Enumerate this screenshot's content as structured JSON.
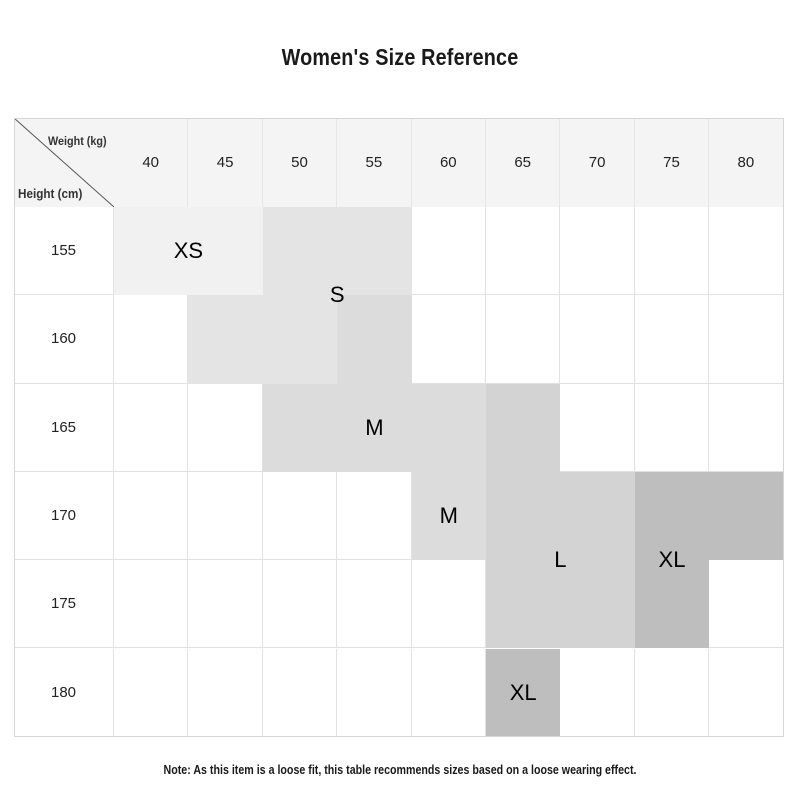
{
  "title": "Women's Size Reference",
  "corner": {
    "weight_label": "Weight (kg)",
    "height_label": "Height (cm)"
  },
  "weights": [
    "40",
    "45",
    "50",
    "55",
    "60",
    "65",
    "70",
    "75",
    "80"
  ],
  "heights": [
    "155",
    "160",
    "165",
    "170",
    "175",
    "180"
  ],
  "size_grid": [
    [
      "XS",
      "XS",
      "S",
      "S",
      "",
      "",
      "",
      "",
      ""
    ],
    [
      "",
      "S",
      "S",
      "M",
      "",
      "",
      "",
      "",
      ""
    ],
    [
      "",
      "",
      "M",
      "M",
      "M",
      "L",
      "",
      "",
      ""
    ],
    [
      "",
      "",
      "",
      "",
      "M",
      "L",
      "L",
      "XL",
      "XL"
    ],
    [
      "",
      "",
      "",
      "",
      "",
      "L",
      "L",
      "XL",
      ""
    ],
    [
      "",
      "",
      "",
      "",
      "",
      "XL",
      "",
      "",
      ""
    ]
  ],
  "size_colors": {
    "XS": "#f1f1f1",
    "S": "#e4e4e4",
    "M": "#dcdcdc",
    "L": "#d3d3d3",
    "XL": "#bebebe"
  },
  "region_labels": [
    {
      "text": "XS",
      "row": 0,
      "col": 0.5
    },
    {
      "text": "S",
      "row": 0.5,
      "col": 2.5
    },
    {
      "text": "M",
      "row": 2,
      "col": 3
    },
    {
      "text": "M",
      "row": 3,
      "col": 4
    },
    {
      "text": "L",
      "row": 3.5,
      "col": 5.5
    },
    {
      "text": "XL",
      "row": 3.5,
      "col": 7
    },
    {
      "text": "XL",
      "row": 5,
      "col": 5
    }
  ],
  "note": "Note: As this item is a loose fit, this table recommends sizes based on a loose wearing effect."
}
